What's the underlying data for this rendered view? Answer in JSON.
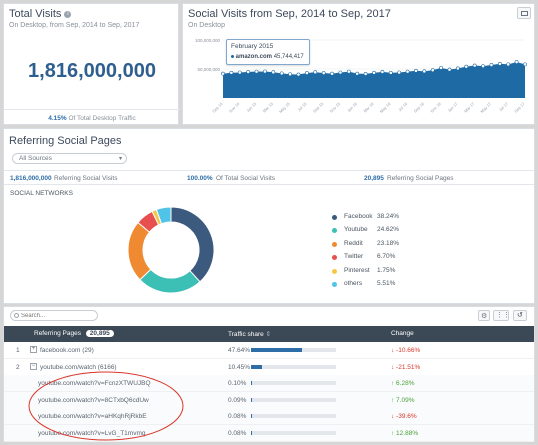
{
  "total_visits": {
    "title": "Total Visits",
    "subtitle": "On Desktop, from Sep, 2014 to Sep, 2017",
    "value": "1,816,000,000",
    "footnote_pct": "4.15%",
    "footnote_text": "Of Total Desktop Traffic"
  },
  "social_visits": {
    "title": "Social Visits from Sep, 2014 to Sep, 2017",
    "subtitle": "On Desktop",
    "tooltip_date": "February 2015",
    "tooltip_site": "amazon.com",
    "tooltip_value": "45,744,417"
  },
  "chart_data": [
    {
      "type": "area",
      "title": "Social Visits from Sep, 2014 to Sep, 2017",
      "ylim": [
        0,
        100000000
      ],
      "yticks": [
        "100,000,000",
        "50,000,000"
      ],
      "x": [
        "Sep 14",
        "Oct 14",
        "Nov 14",
        "Dec 14",
        "Jan 15",
        "Feb 15",
        "Mar 15",
        "Apr 15",
        "May 15",
        "Jun 15",
        "Jul 15",
        "Aug 15",
        "Sep 15",
        "Oct 15",
        "Nov 15",
        "Dec 15",
        "Jan 16",
        "Feb 16",
        "Mar 16",
        "Apr 16",
        "May 16",
        "Jun 16",
        "Jul 16",
        "Aug 16",
        "Sep 16",
        "Oct 16",
        "Nov 16",
        "Dec 16",
        "Jan 17",
        "Feb 17",
        "Mar 17",
        "Apr 17",
        "May 17",
        "Jun 17",
        "Jul 17",
        "Aug 17",
        "Sep 17"
      ],
      "values": [
        42000000,
        43500000,
        44000000,
        45000000,
        45500000,
        45744417,
        44500000,
        42500000,
        41000000,
        40500000,
        43000000,
        44500000,
        43000000,
        42000000,
        44000000,
        45500000,
        42000000,
        41500000,
        43500000,
        45000000,
        43500000,
        44000000,
        45500000,
        47000000,
        46000000,
        48000000,
        52000000,
        49000000,
        51000000,
        54000000,
        56000000,
        55000000,
        57000000,
        59000000,
        58000000,
        62000000,
        58000000
      ],
      "series_name": "amazon.com"
    },
    {
      "type": "pie",
      "title": "SOCIAL NETWORKS",
      "categories": [
        "Facebook",
        "Youtube",
        "Reddit",
        "Twitter",
        "Pinterest",
        "others"
      ],
      "values": [
        38.24,
        24.62,
        23.18,
        6.7,
        1.75,
        5.51
      ]
    }
  ],
  "referring": {
    "title": "Referring Social Pages",
    "source_select": "All Sources",
    "stat1_value": "1,816,000,000",
    "stat1_label": "Referring Social Visits",
    "stat2_value": "100.00%",
    "stat2_label": "Of Total Social Visits",
    "stat3_value": "20,895",
    "stat3_label": "Referring Social Pages",
    "networks_label": "SOCIAL NETWORKS"
  },
  "legend": [
    {
      "name": "Facebook",
      "pct": "38.24%",
      "color": "#3c5a7d"
    },
    {
      "name": "Youtube",
      "pct": "24.62%",
      "color": "#3cbfb4"
    },
    {
      "name": "Reddit",
      "pct": "23.18%",
      "color": "#f08a32"
    },
    {
      "name": "Twitter",
      "pct": "6.70%",
      "color": "#e84f4f"
    },
    {
      "name": "Pinterest",
      "pct": "1.75%",
      "color": "#f5c842"
    },
    {
      "name": "others",
      "pct": "5.51%",
      "color": "#4fc3e8"
    }
  ],
  "table": {
    "search_placeholder": "Search...",
    "col_pages": "Referring Pages",
    "col_pages_count": "20,895",
    "col_share": "Traffic share",
    "col_change": "Change",
    "rows": [
      {
        "num": "1",
        "page": "facebook.com",
        "extra": "(29)",
        "share": "47.64%",
        "share_frac": 0.4764,
        "change": "-10.66%",
        "dir": "down",
        "indent": false,
        "expander": "+"
      },
      {
        "num": "2",
        "page": "youtube.com/watch",
        "extra": "(6166)",
        "share": "10.45%",
        "share_frac": 0.1045,
        "change": "-21.51%",
        "dir": "down",
        "indent": false,
        "expander": "−"
      },
      {
        "num": "",
        "page": "youtube.com/watch?v=FcnzXTWUJBQ",
        "extra": "",
        "share": "0.10%",
        "share_frac": 0.001,
        "change": "6.28%",
        "dir": "up",
        "indent": true,
        "expander": ""
      },
      {
        "num": "",
        "page": "youtube.com/watch?v=8CTxbQ6cdUw",
        "extra": "",
        "share": "0.09%",
        "share_frac": 0.0009,
        "change": "7.09%",
        "dir": "up",
        "indent": true,
        "expander": ""
      },
      {
        "num": "",
        "page": "youtube.com/watch?v=aHKqhRjRkbE",
        "extra": "",
        "share": "0.08%",
        "share_frac": 0.0008,
        "change": "-39.6%",
        "dir": "down",
        "indent": true,
        "expander": ""
      },
      {
        "num": "",
        "page": "youtube.com/watch?v=LvG_T1mvmg",
        "extra": "",
        "share": "0.08%",
        "share_frac": 0.0008,
        "change": "12.88%",
        "dir": "up",
        "indent": true,
        "expander": ""
      }
    ]
  },
  "colors": {
    "accent": "#2d6ea8",
    "area": "#1d6aa5",
    "header": "#3b4856",
    "down": "#d9352a",
    "up": "#4aa13a",
    "annotation": "#d9352a"
  }
}
